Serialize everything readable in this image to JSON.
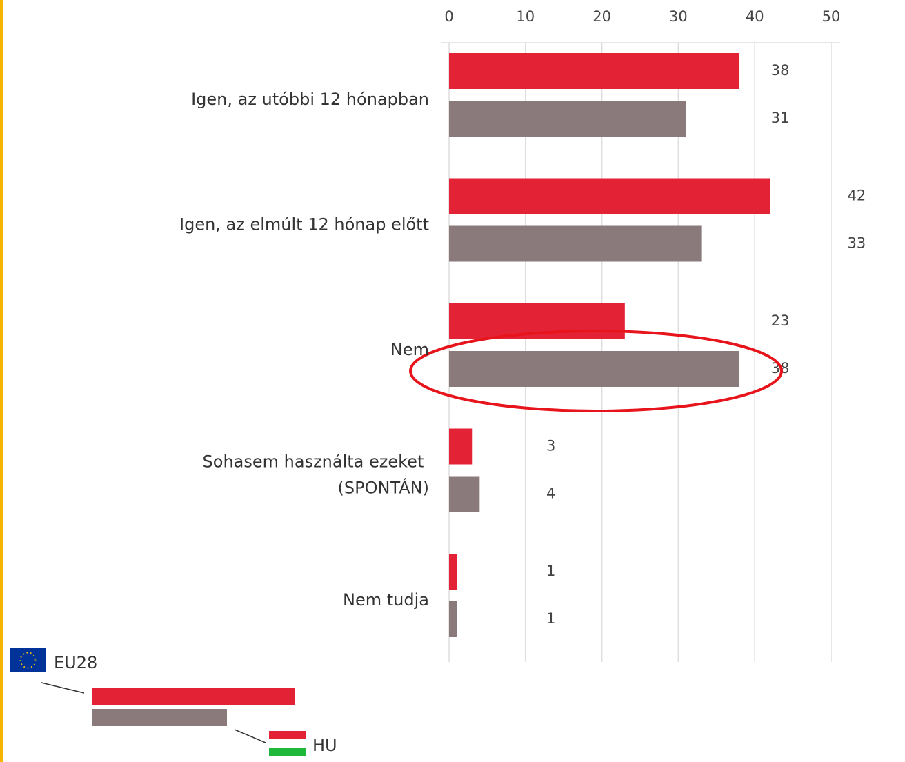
{
  "chart_data": {
    "type": "hbar",
    "categories": [
      "Igen, az utóbbi 12 hónapban",
      "Igen, az elmúlt 12 hónap előtt",
      "Nem",
      "Sohasem használta ezeket (SPONTÁN)",
      "Nem tudja"
    ],
    "series": [
      {
        "name": "EU28",
        "color": "#e32235",
        "values": [
          38,
          42,
          23,
          3,
          1
        ]
      },
      {
        "name": "HU",
        "color": "#8a7a7b",
        "values": [
          31,
          33,
          38,
          4,
          1
        ]
      }
    ],
    "xlim": [
      0,
      50
    ],
    "xticks": [
      0,
      10,
      20,
      30,
      40,
      50
    ],
    "grid": true
  }
}
